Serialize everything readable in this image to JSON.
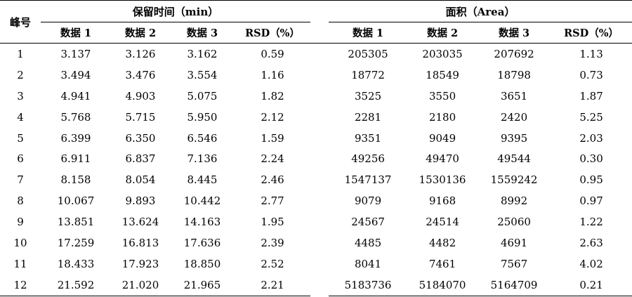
{
  "header": {
    "peak_label": "峰号",
    "group_retention": "保留时间（min）",
    "group_area": "面积（Area）",
    "retention_cols": [
      "数据 1",
      "数据 2",
      "数据 3",
      "RSD（%）"
    ],
    "area_cols": [
      "数据 1",
      "数据 2",
      "数据 3",
      "RSD（%）"
    ]
  },
  "rows": [
    {
      "peak": "1",
      "rt1": "3.137",
      "rt2": "3.126",
      "rt3": "3.162",
      "rt_rsd": "0.59",
      "a1": "205305",
      "a2": "203035",
      "a3": "207692",
      "a_rsd": "1.13"
    },
    {
      "peak": "2",
      "rt1": "3.494",
      "rt2": "3.476",
      "rt3": "3.554",
      "rt_rsd": "1.16",
      "a1": "18772",
      "a2": "18549",
      "a3": "18798",
      "a_rsd": "0.73"
    },
    {
      "peak": "3",
      "rt1": "4.941",
      "rt2": "4.903",
      "rt3": "5.075",
      "rt_rsd": "1.82",
      "a1": "3525",
      "a2": "3550",
      "a3": "3651",
      "a_rsd": "1.87"
    },
    {
      "peak": "4",
      "rt1": "5.768",
      "rt2": "5.715",
      "rt3": "5.950",
      "rt_rsd": "2.12",
      "a1": "2281",
      "a2": "2180",
      "a3": "2420",
      "a_rsd": "5.25"
    },
    {
      "peak": "5",
      "rt1": "6.399",
      "rt2": "6.350",
      "rt3": "6.546",
      "rt_rsd": "1.59",
      "a1": "9351",
      "a2": "9049",
      "a3": "9395",
      "a_rsd": "2.03"
    },
    {
      "peak": "6",
      "rt1": "6.911",
      "rt2": "6.837",
      "rt3": "7.136",
      "rt_rsd": "2.24",
      "a1": "49256",
      "a2": "49470",
      "a3": "49544",
      "a_rsd": "0.30"
    },
    {
      "peak": "7",
      "rt1": "8.158",
      "rt2": "8.054",
      "rt3": "8.445",
      "rt_rsd": "2.46",
      "a1": "1547137",
      "a2": "1530136",
      "a3": "1559242",
      "a_rsd": "0.95"
    },
    {
      "peak": "8",
      "rt1": "10.067",
      "rt2": "9.893",
      "rt3": "10.442",
      "rt_rsd": "2.77",
      "a1": "9079",
      "a2": "9168",
      "a3": "8992",
      "a_rsd": "0.97"
    },
    {
      "peak": "9",
      "rt1": "13.851",
      "rt2": "13.624",
      "rt3": "14.163",
      "rt_rsd": "1.95",
      "a1": "24567",
      "a2": "24514",
      "a3": "25060",
      "a_rsd": "1.22"
    },
    {
      "peak": "10",
      "rt1": "17.259",
      "rt2": "16.813",
      "rt3": "17.636",
      "rt_rsd": "2.39",
      "a1": "4485",
      "a2": "4482",
      "a3": "4691",
      "a_rsd": "2.63"
    },
    {
      "peak": "11",
      "rt1": "18.433",
      "rt2": "17.923",
      "rt3": "18.850",
      "rt_rsd": "2.52",
      "a1": "8041",
      "a2": "7461",
      "a3": "7567",
      "a_rsd": "4.02"
    },
    {
      "peak": "12",
      "rt1": "21.592",
      "rt2": "21.020",
      "rt3": "21.965",
      "rt_rsd": "2.21",
      "a1": "5183736",
      "a2": "5184070",
      "a3": "5164709",
      "a_rsd": "0.21"
    }
  ]
}
